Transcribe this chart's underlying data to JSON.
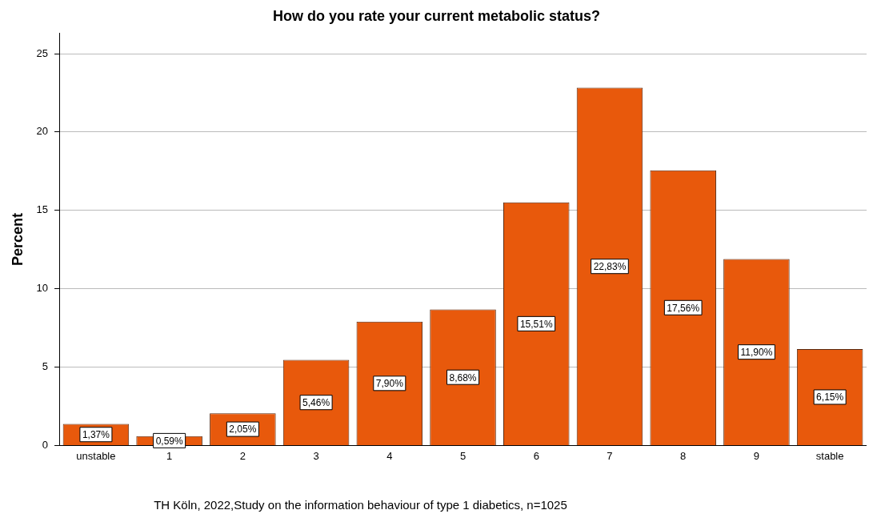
{
  "chart_data": {
    "type": "bar",
    "title": "How do you rate your current metabolic status?",
    "ylabel": "Percent",
    "categories": [
      "unstable",
      "1",
      "2",
      "3",
      "4",
      "5",
      "6",
      "7",
      "8",
      "9",
      "stable"
    ],
    "values": [
      1.37,
      0.59,
      2.05,
      5.46,
      7.9,
      8.68,
      15.51,
      22.83,
      17.56,
      11.9,
      6.15
    ],
    "value_labels": [
      "1,37%",
      "0,59%",
      "2,05%",
      "5,46%",
      "7,90%",
      "8,68%",
      "15,51%",
      "22,83%",
      "17,56%",
      "11,90%",
      "6,15%"
    ],
    "color": "#e8590c",
    "ylim": [
      0,
      26.3
    ],
    "yticks": [
      0,
      5,
      10,
      15,
      20,
      25
    ],
    "grid": "y",
    "legend": false,
    "annotations": [
      "TH Köln, 2022,Study on the information behaviour of type 1 diabetics, n=1025"
    ]
  }
}
